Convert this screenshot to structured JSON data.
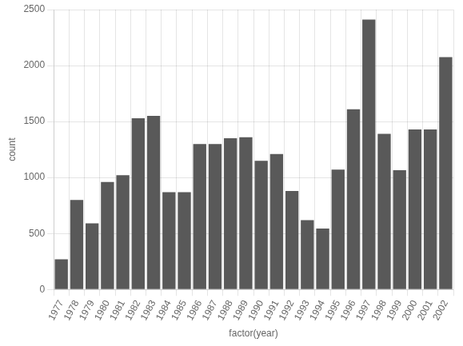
{
  "chart_data": {
    "type": "bar",
    "categories": [
      "1977",
      "1978",
      "1979",
      "1980",
      "1981",
      "1982",
      "1983",
      "1984",
      "1985",
      "1986",
      "1987",
      "1988",
      "1989",
      "1990",
      "1991",
      "1992",
      "1993",
      "1994",
      "1995",
      "1996",
      "1997",
      "1998",
      "1999",
      "2000",
      "2001",
      "2002"
    ],
    "values": [
      270,
      800,
      590,
      960,
      1020,
      1530,
      1550,
      870,
      870,
      1300,
      1300,
      1350,
      1360,
      1150,
      1210,
      880,
      620,
      545,
      1070,
      1610,
      2410,
      1390,
      1065,
      1430,
      1430,
      2075
    ],
    "color": "#595959",
    "xlabel": "factor(year)",
    "ylabel": "count",
    "ylim": [
      0,
      2500
    ],
    "yticks": [
      0,
      500,
      1000,
      1500,
      2000,
      2500
    ],
    "grid": true
  }
}
